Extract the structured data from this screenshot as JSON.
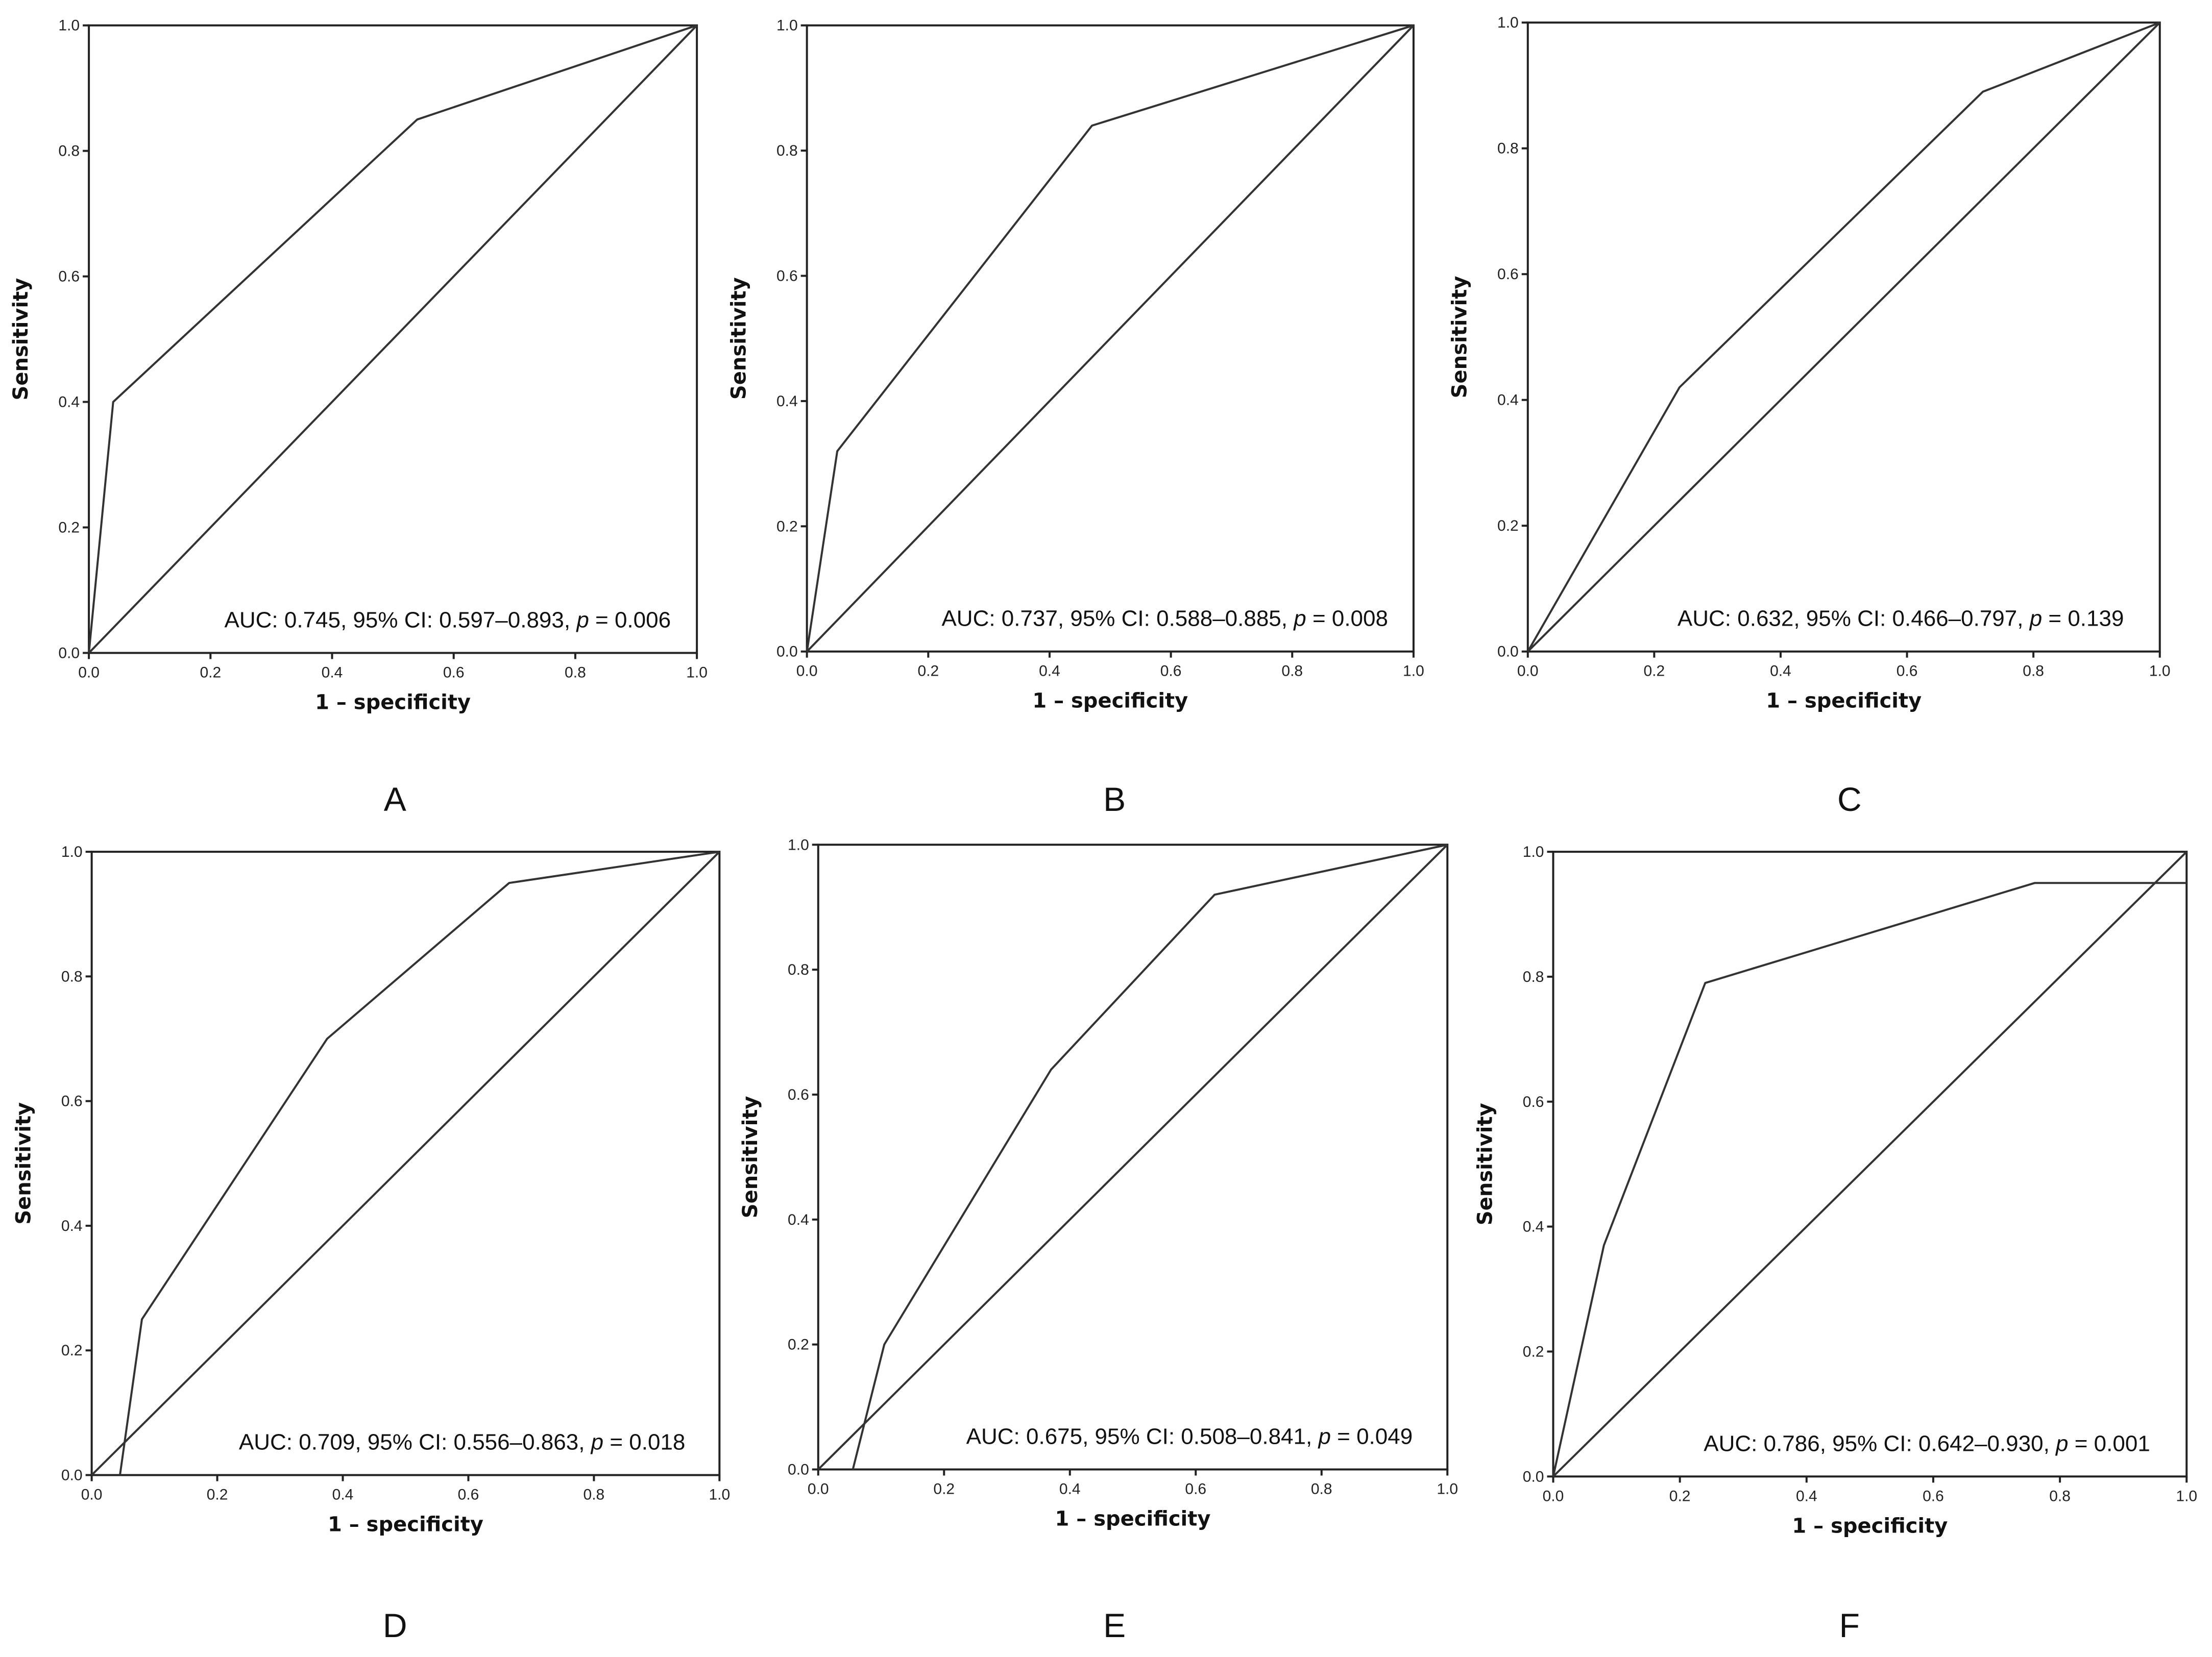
{
  "chart_data": [
    {
      "type": "line",
      "panel": "A",
      "xlabel": "1 – specificity",
      "ylabel": "Sensitivity",
      "xlim": [
        0,
        1
      ],
      "ylim": [
        0,
        1
      ],
      "xticks": [
        "0.0",
        "0.2",
        "0.4",
        "0.6",
        "0.8",
        "1.0"
      ],
      "yticks": [
        "0.0",
        "0.2",
        "0.4",
        "0.6",
        "0.8",
        "1.0"
      ],
      "series": [
        {
          "name": "ROC",
          "x": [
            0,
            0.04,
            0.54,
            1.0
          ],
          "y": [
            0,
            0.4,
            0.85,
            1.0
          ]
        },
        {
          "name": "Reference",
          "x": [
            0,
            1
          ],
          "y": [
            0,
            1
          ]
        }
      ],
      "annotation": {
        "prefix": "AUC: 0.745, 95% CI: 0.597–0.893, ",
        "p": "p",
        "suffix": " = 0.006"
      }
    },
    {
      "type": "line",
      "panel": "B",
      "xlabel": "1 – specificity",
      "ylabel": "Sensitivity",
      "xlim": [
        0,
        1
      ],
      "ylim": [
        0,
        1
      ],
      "xticks": [
        "0.0",
        "0.2",
        "0.4",
        "0.6",
        "0.8",
        "1.0"
      ],
      "yticks": [
        "0.0",
        "0.2",
        "0.4",
        "0.6",
        "0.8",
        "1.0"
      ],
      "series": [
        {
          "name": "ROC",
          "x": [
            0,
            0.05,
            0.47,
            1.0
          ],
          "y": [
            0,
            0.32,
            0.84,
            1.0
          ]
        },
        {
          "name": "Reference",
          "x": [
            0,
            1
          ],
          "y": [
            0,
            1
          ]
        }
      ],
      "annotation": {
        "prefix": "AUC: 0.737, 95% CI: 0.588–0.885, ",
        "p": "p",
        "suffix": " = 0.008"
      }
    },
    {
      "type": "line",
      "panel": "C",
      "xlabel": "1 – specificity",
      "ylabel": "Sensitivity",
      "xlim": [
        0,
        1
      ],
      "ylim": [
        0,
        1
      ],
      "xticks": [
        "0.0",
        "0.2",
        "0.4",
        "0.6",
        "0.8",
        "1.0"
      ],
      "yticks": [
        "0.0",
        "0.2",
        "0.4",
        "0.6",
        "0.8",
        "1.0"
      ],
      "series": [
        {
          "name": "ROC",
          "x": [
            0,
            0.24,
            0.72,
            1.0
          ],
          "y": [
            0,
            0.42,
            0.89,
            1.0
          ]
        },
        {
          "name": "Reference",
          "x": [
            0,
            1
          ],
          "y": [
            0,
            1
          ]
        }
      ],
      "annotation": {
        "prefix": "AUC: 0.632, 95% CI: 0.466–0.797, ",
        "p": "p",
        "suffix": " = 0.139"
      }
    },
    {
      "type": "line",
      "panel": "D",
      "xlabel": "1 – specificity",
      "ylabel": "Sensitivity",
      "xlim": [
        0,
        1
      ],
      "ylim": [
        0,
        1
      ],
      "xticks": [
        "0.0",
        "0.2",
        "0.4",
        "0.6",
        "0.8",
        "1.0"
      ],
      "yticks": [
        "0.0",
        "0.2",
        "0.4",
        "0.6",
        "0.8",
        "1.0"
      ],
      "series": [
        {
          "name": "ROC",
          "x": [
            0.045,
            0.08,
            0.375,
            0.665,
            1.0
          ],
          "y": [
            0,
            0.25,
            0.7,
            0.95,
            1.0
          ]
        },
        {
          "name": "Reference",
          "x": [
            0,
            1
          ],
          "y": [
            0,
            1
          ]
        }
      ],
      "annotation": {
        "prefix": "AUC: 0.709, 95% CI: 0.556–0.863, ",
        "p": "p",
        "suffix": " = 0.018"
      }
    },
    {
      "type": "line",
      "panel": "E",
      "xlabel": "1 – specificity",
      "ylabel": "Sensitivity",
      "xlim": [
        0,
        1
      ],
      "ylim": [
        0,
        1
      ],
      "xticks": [
        "0.0",
        "0.2",
        "0.4",
        "0.6",
        "0.8",
        "1.0"
      ],
      "yticks": [
        "0.0",
        "0.2",
        "0.4",
        "0.6",
        "0.8",
        "1.0"
      ],
      "series": [
        {
          "name": "ROC",
          "x": [
            0.055,
            0.105,
            0.37,
            0.63,
            1.0
          ],
          "y": [
            0,
            0.2,
            0.64,
            0.92,
            1.0
          ]
        },
        {
          "name": "Reference",
          "x": [
            0,
            1
          ],
          "y": [
            0,
            1
          ]
        }
      ],
      "annotation": {
        "prefix": "AUC: 0.675, 95% CI: 0.508–0.841, ",
        "p": "p",
        "suffix": " = 0.049"
      }
    },
    {
      "type": "line",
      "panel": "F",
      "xlabel": "1 – specificity",
      "ylabel": "Sensitivity",
      "xlim": [
        0,
        1
      ],
      "ylim": [
        0,
        1
      ],
      "xticks": [
        "0.0",
        "0.2",
        "0.4",
        "0.6",
        "0.8",
        "1.0"
      ],
      "yticks": [
        "0.0",
        "0.2",
        "0.4",
        "0.6",
        "0.8",
        "1.0"
      ],
      "series": [
        {
          "name": "ROC",
          "x": [
            0,
            0.08,
            0.24,
            0.76,
            1.0
          ],
          "y": [
            0,
            0.37,
            0.79,
            0.95,
            0.95
          ]
        },
        {
          "name": "Reference",
          "x": [
            0,
            1
          ],
          "y": [
            0,
            1
          ]
        }
      ],
      "annotation": {
        "prefix": "AUC: 0.786, 95% CI: 0.642–0.930, ",
        "p": "p",
        "suffix": " = 0.001"
      }
    }
  ]
}
